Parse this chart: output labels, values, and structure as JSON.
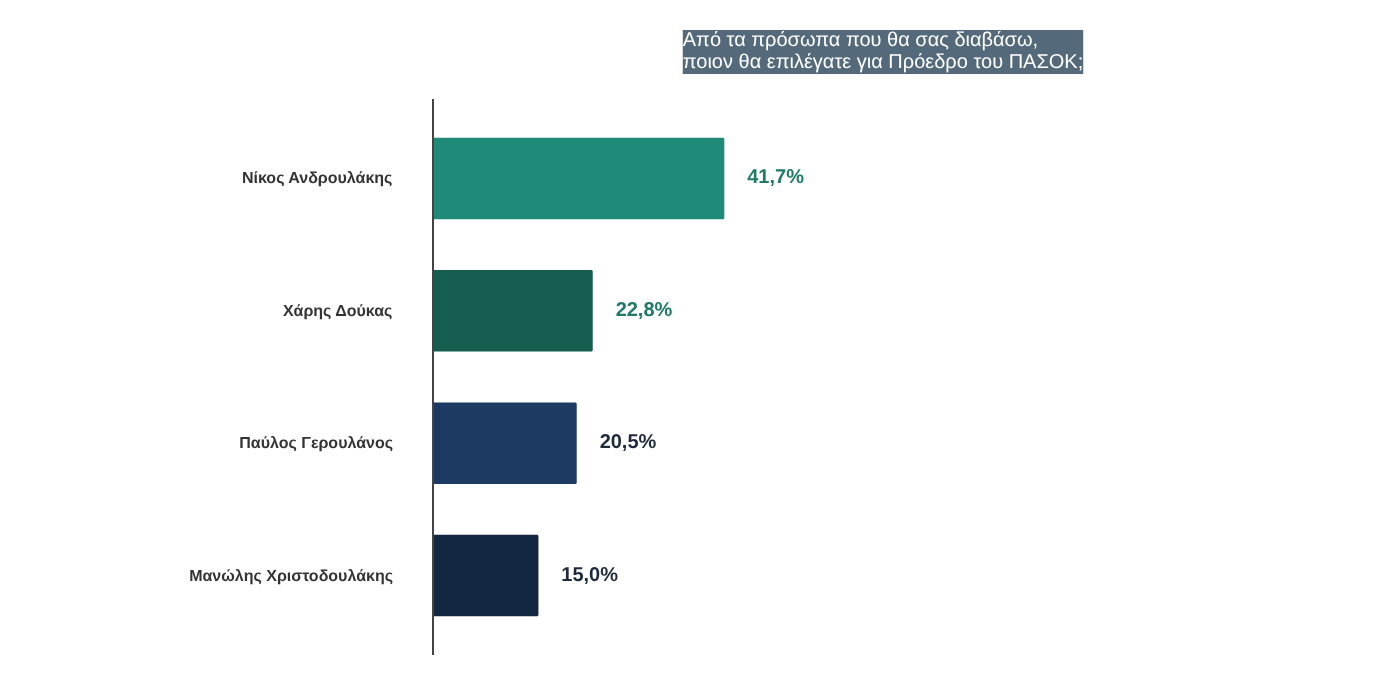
{
  "chart_data": {
    "type": "bar",
    "orientation": "horizontal",
    "title": "Από τα πρόσωπα που θα σας διαβάσω,\nποιον θα επιλέγατε για Πρόεδρο του ΠΑΣΟΚ;",
    "categories": [
      "Νίκος Ανδρουλάκης",
      "Χάρης Δούκας",
      "Παύλος Γερουλάνος",
      "Μανώλης Χριστοδουλάκης"
    ],
    "values": [
      41.7,
      22.8,
      20.5,
      15.0
    ],
    "colors": [
      "#1f8a78",
      "#155e4f",
      "#1d3a63",
      "#142740"
    ],
    "value_labels": [
      "41,7%",
      "22,8%",
      "20,5%",
      "15,0%"
    ],
    "grid": false
  }
}
